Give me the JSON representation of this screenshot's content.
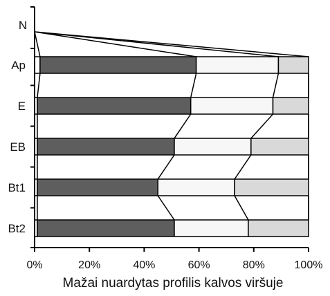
{
  "chart_data": {
    "type": "bar",
    "orientation": "horizontal",
    "stacked": true,
    "xlabel": "Mažai nuardytas profilis kalvos viršuje",
    "xlim": [
      0,
      100
    ],
    "x_tick_labels": [
      "0%",
      "20%",
      "40%",
      "60%",
      "80%",
      "100%"
    ],
    "x_ticks": [
      0,
      20,
      40,
      60,
      80,
      100
    ],
    "top_label": "N",
    "categories": [
      "Ap",
      "E",
      "EB",
      "Bt1",
      "Bt2"
    ],
    "series": [
      {
        "values": [
          2,
          1,
          1,
          1,
          1
        ],
        "color": "#ffffff"
      },
      {
        "values": [
          57,
          56,
          50,
          44,
          50
        ],
        "color": "#5e5e5e"
      },
      {
        "values": [
          30,
          30,
          28,
          28,
          27
        ],
        "color": "#f7f7f7"
      },
      {
        "values": [
          11,
          13,
          21,
          27,
          22
        ],
        "color": "#d9d9d9"
      }
    ],
    "legend": "none",
    "grid": false
  }
}
